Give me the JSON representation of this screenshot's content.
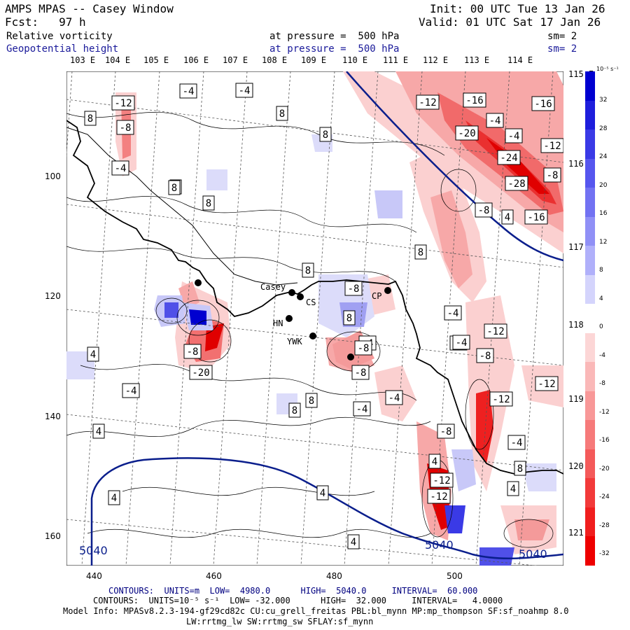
{
  "header": {
    "title": "AMPS MPAS -- Casey Window",
    "fcst": "Fcst:   97 h",
    "init": "Init: 00 UTC Tue 13 Jan 26",
    "valid": "Valid: 01 UTC Sat 17 Jan 26",
    "field1": "Relative vorticity",
    "field1_level": "at pressure =  500 hPa",
    "field1_sm": "sm= 2",
    "field2": "Geopotential height",
    "field2_level": "at pressure =  500 hPa",
    "field2_sm": "sm= 2"
  },
  "longitude_labels": [
    "103 E",
    "104 E",
    "105 E",
    "106 E",
    "107 E",
    "108 E",
    "109 E",
    "110 E",
    "111 E",
    "112 E",
    "113 E",
    "114 E"
  ],
  "right_labels": [
    "115 E",
    "116 E",
    "117 E",
    "118 E",
    "119 E",
    "120 E",
    "121 E"
  ],
  "x_ticks": [
    "440",
    "460",
    "480",
    "500"
  ],
  "y_ticks": [
    "100",
    "120",
    "140",
    "160"
  ],
  "stations": [
    "Casey",
    "CS",
    "HN",
    "YWK",
    "CP"
  ],
  "colorbar": {
    "unit": "10⁻⁵ s⁻¹",
    "labels": [
      "32",
      "28",
      "24",
      "20",
      "16",
      "12",
      "8",
      "4",
      "0",
      "-4",
      "-8",
      "-12",
      "-16",
      "-20",
      "-24",
      "-28",
      "-32"
    ],
    "colors": [
      "#0000d0",
      "#1e1edc",
      "#3a3ae6",
      "#5656ee",
      "#7272f2",
      "#9090f6",
      "#b0b0fa",
      "#d4d4fc",
      "#ffffff",
      "#fcd6d6",
      "#fab8b8",
      "#f89898",
      "#f67a7a",
      "#f45a5a",
      "#f23a3a",
      "#f01e1e",
      "#ee0000"
    ]
  },
  "height_contours": {
    "label_left": "5040",
    "label_mid": "5040",
    "label_right": "5040"
  },
  "vorticity_labels": [
    "-12",
    "-8",
    "-4",
    "-4",
    "-4",
    "8",
    "8",
    "8",
    "8",
    "4",
    "-12",
    "-16",
    "-16",
    "-20",
    "-4",
    "-4",
    "-24",
    "-12",
    "-28",
    "-8",
    "-8",
    "-16",
    "4",
    "8",
    "-4",
    "8",
    "8",
    "-8",
    "8",
    "-4",
    "-4",
    "-12",
    "-4",
    "-8",
    "-8",
    "-4",
    "-8",
    "-12",
    "-4",
    "-12",
    "-8",
    "-4",
    "-12",
    "8",
    "8",
    "4",
    "4",
    "4",
    "-4",
    "-8",
    "-20",
    "-12",
    "4",
    "4",
    "8",
    "4",
    "4"
  ],
  "footer": {
    "line1": "CONTOURS:  UNITS=m  LOW=  4980.0      HIGH=  5040.0     INTERVAL=  60.000",
    "line2": "CONTOURS:  UNITS=10⁻⁵ s⁻¹  LOW= -32.000      HIGH=  32.000     INTERVAL=   4.0000",
    "line3": "Model Info: MPASv8.2.3-194-gf29cd82c CU:cu_grell_freitas PBL:bl_mynn MP:mp_thompson SF:sf_noahmp 8.0",
    "line4": "LW:rrtmg_lw SW:rrtmg_sw SFLAY:sf_mynn"
  }
}
